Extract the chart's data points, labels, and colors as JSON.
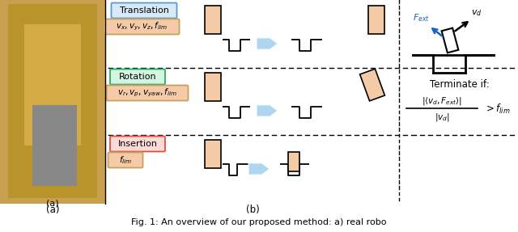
{
  "fig_width": 6.4,
  "fig_height": 2.87,
  "dpi": 100,
  "translation_label": "Translation",
  "translation_params": "$v_x, v_y, v_z, f_{lim}$",
  "rotation_label": "Rotation",
  "rotation_params": "$v_r, v_p, v_{yaw}, f_{lim}$",
  "insertion_label": "Insertion",
  "insertion_params": "$f_{lim}$",
  "label_a": "(a)",
  "label_b": "(b)",
  "caption": "Fig. 1: An overview of our proposed method: a) real robo",
  "box_color_translation_face": "#D6EAF8",
  "box_color_translation_edge": "#5B9BD5",
  "box_color_rotation_face": "#D5F5E3",
  "box_color_rotation_edge": "#27AE60",
  "box_color_insertion_face": "#FADBD8",
  "box_color_insertion_edge": "#E74C3C",
  "rect_fill": "#F5CBA7",
  "rect_edge": "#000000",
  "arrow_fill": "#AED6F1",
  "arrow_edge": "#FFFFFF",
  "line_color": "#000000",
  "robot_bg": "#D4B896"
}
